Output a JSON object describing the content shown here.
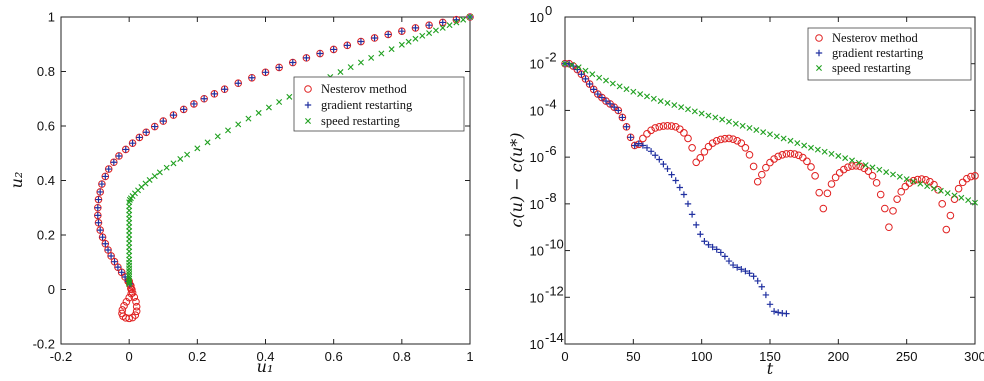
{
  "chart_data": [
    {
      "type": "scatter",
      "title": "",
      "xlabel": "u₁",
      "ylabel": "u₂",
      "xlim": [
        -0.2,
        1.0
      ],
      "ylim": [
        -0.2,
        1.0
      ],
      "xticks": [
        "-0.2",
        "0",
        "0.2",
        "0.4",
        "0.6",
        "0.8",
        "1"
      ],
      "yticks": [
        "-0.2",
        "0",
        "0.2",
        "0.4",
        "0.6",
        "0.8",
        "1"
      ],
      "grid": false,
      "legend_position": "upper-right",
      "series": [
        {
          "name": "Nesterov method",
          "marker": "circle",
          "color": "#e02020",
          "x": [
            1.0,
            0.96,
            0.92,
            0.88,
            0.84,
            0.8,
            0.76,
            0.72,
            0.68,
            0.64,
            0.6,
            0.56,
            0.52,
            0.48,
            0.44,
            0.4,
            0.36,
            0.32,
            0.28,
            0.25,
            0.22,
            0.19,
            0.16,
            0.13,
            0.1,
            0.075,
            0.05,
            0.03,
            0.01,
            -0.01,
            -0.03,
            -0.045,
            -0.06,
            -0.07,
            -0.08,
            -0.085,
            -0.09,
            -0.092,
            -0.092,
            -0.09,
            -0.085,
            -0.078,
            -0.07,
            -0.062,
            -0.053,
            -0.043,
            -0.033,
            -0.022,
            -0.012,
            -0.003,
            0.005,
            0.008,
            0.006,
            0.0,
            -0.008,
            -0.015,
            -0.02,
            -0.021,
            -0.018,
            -0.01,
            0.0,
            0.01,
            0.018,
            0.022,
            0.022,
            0.02,
            0.015,
            0.01,
            0.005,
            0.002,
            0.0
          ],
          "y": [
            1.0,
            0.99,
            0.98,
            0.97,
            0.96,
            0.948,
            0.936,
            0.923,
            0.91,
            0.896,
            0.881,
            0.866,
            0.85,
            0.833,
            0.815,
            0.797,
            0.777,
            0.757,
            0.735,
            0.718,
            0.7,
            0.681,
            0.661,
            0.64,
            0.618,
            0.598,
            0.577,
            0.558,
            0.537,
            0.514,
            0.49,
            0.467,
            0.442,
            0.415,
            0.387,
            0.358,
            0.33,
            0.3,
            0.272,
            0.245,
            0.218,
            0.192,
            0.168,
            0.145,
            0.123,
            0.102,
            0.082,
            0.063,
            0.046,
            0.03,
            0.014,
            0.0,
            -0.015,
            -0.03,
            -0.045,
            -0.06,
            -0.075,
            -0.088,
            -0.098,
            -0.104,
            -0.106,
            -0.103,
            -0.094,
            -0.08,
            -0.063,
            -0.045,
            -0.028,
            -0.012,
            0.003,
            0.018,
            0.03
          ]
        },
        {
          "name": "gradient restarting",
          "marker": "plus",
          "color": "#2030a0",
          "x": [
            1.0,
            0.96,
            0.92,
            0.88,
            0.84,
            0.8,
            0.76,
            0.72,
            0.68,
            0.64,
            0.6,
            0.56,
            0.52,
            0.48,
            0.44,
            0.4,
            0.36,
            0.32,
            0.28,
            0.25,
            0.22,
            0.19,
            0.16,
            0.13,
            0.1,
            0.075,
            0.05,
            0.03,
            0.01,
            -0.01,
            -0.03,
            -0.045,
            -0.06,
            -0.07,
            -0.08,
            -0.085,
            -0.09,
            -0.092,
            -0.092,
            -0.09,
            -0.085,
            -0.078,
            -0.07,
            -0.062,
            -0.053,
            -0.043,
            -0.033,
            -0.022,
            -0.012,
            -0.003,
            0.002
          ],
          "y": [
            1.0,
            0.99,
            0.98,
            0.97,
            0.96,
            0.948,
            0.936,
            0.923,
            0.91,
            0.896,
            0.881,
            0.866,
            0.85,
            0.833,
            0.815,
            0.797,
            0.777,
            0.757,
            0.735,
            0.718,
            0.7,
            0.681,
            0.661,
            0.64,
            0.618,
            0.598,
            0.577,
            0.558,
            0.537,
            0.514,
            0.49,
            0.467,
            0.442,
            0.415,
            0.387,
            0.358,
            0.33,
            0.3,
            0.272,
            0.245,
            0.218,
            0.192,
            0.168,
            0.145,
            0.123,
            0.102,
            0.082,
            0.063,
            0.046,
            0.03,
            0.02
          ]
        },
        {
          "name": "speed restarting",
          "marker": "x",
          "color": "#20a020",
          "x": [
            1.0,
            0.98,
            0.96,
            0.94,
            0.92,
            0.9,
            0.88,
            0.86,
            0.84,
            0.82,
            0.8,
            0.77,
            0.74,
            0.71,
            0.68,
            0.65,
            0.62,
            0.59,
            0.56,
            0.53,
            0.5,
            0.47,
            0.44,
            0.41,
            0.38,
            0.35,
            0.32,
            0.29,
            0.26,
            0.23,
            0.2,
            0.17,
            0.15,
            0.13,
            0.11,
            0.09,
            0.075,
            0.06,
            0.048,
            0.036,
            0.026,
            0.017,
            0.01,
            0.005,
            0.002,
            0.0,
            0.0,
            0.0,
            0.0,
            0.0,
            0.0,
            0.0,
            0.0,
            0.0,
            0.0,
            0.0,
            0.0,
            0.0,
            0.0,
            0.0,
            0.0,
            0.0,
            0.0,
            0.0,
            0.0,
            0.0,
            0.0,
            0.0,
            0.0,
            0.0
          ],
          "y": [
            1.0,
            0.99,
            0.98,
            0.97,
            0.96,
            0.951,
            0.941,
            0.931,
            0.92,
            0.909,
            0.898,
            0.882,
            0.866,
            0.85,
            0.833,
            0.816,
            0.798,
            0.78,
            0.762,
            0.744,
            0.726,
            0.707,
            0.688,
            0.668,
            0.648,
            0.627,
            0.606,
            0.584,
            0.562,
            0.54,
            0.518,
            0.495,
            0.479,
            0.463,
            0.447,
            0.43,
            0.416,
            0.402,
            0.389,
            0.376,
            0.364,
            0.353,
            0.343,
            0.335,
            0.329,
            0.32,
            0.305,
            0.29,
            0.275,
            0.26,
            0.245,
            0.23,
            0.215,
            0.2,
            0.185,
            0.17,
            0.155,
            0.14,
            0.125,
            0.11,
            0.098,
            0.087,
            0.076,
            0.066,
            0.056,
            0.047,
            0.039,
            0.032,
            0.026,
            0.02
          ]
        }
      ]
    },
    {
      "type": "scatter",
      "title": "",
      "xlabel": "t",
      "ylabel": "c(u) − c(u*)",
      "xlim": [
        0,
        300
      ],
      "ylim_log10": [
        -14,
        0
      ],
      "yscale": "log",
      "xticks": [
        "0",
        "50",
        "100",
        "150",
        "200",
        "250",
        "300"
      ],
      "yticks": [
        "10",
        "10",
        "10",
        "10",
        "10",
        "10",
        "10",
        "10"
      ],
      "ytick_exponents": [
        "0",
        "-2",
        "-4",
        "-6",
        "-8",
        "-10",
        "-12",
        "-14"
      ],
      "grid": false,
      "legend_position": "upper-right",
      "series": [
        {
          "name": "Nesterov method",
          "marker": "circle",
          "color": "#e02020",
          "t": [
            0,
            3,
            6,
            9,
            12,
            15,
            18,
            21,
            24,
            27,
            30,
            33,
            36,
            39,
            42,
            45,
            48,
            51,
            54,
            57,
            60,
            63,
            66,
            69,
            72,
            75,
            78,
            81,
            84,
            87,
            90,
            93,
            96,
            99,
            102,
            105,
            108,
            111,
            114,
            117,
            120,
            123,
            126,
            129,
            132,
            135,
            138,
            141,
            144,
            147,
            150,
            153,
            156,
            159,
            162,
            165,
            168,
            171,
            174,
            177,
            180,
            183,
            186,
            189,
            192,
            195,
            198,
            201,
            204,
            207,
            210,
            213,
            216,
            219,
            222,
            225,
            228,
            231,
            234,
            237,
            240,
            243,
            246,
            249,
            252,
            255,
            258,
            261,
            264,
            267,
            270,
            273,
            276,
            279,
            282,
            285,
            288,
            291,
            294,
            297,
            300
          ],
          "log10_value": [
            -2.0,
            -2.0,
            -2.1,
            -2.25,
            -2.45,
            -2.65,
            -2.87,
            -3.1,
            -3.3,
            -3.45,
            -3.6,
            -3.72,
            -3.86,
            -4.0,
            -4.3,
            -4.7,
            -5.15,
            -5.5,
            -5.45,
            -5.2,
            -5.0,
            -4.85,
            -4.75,
            -4.7,
            -4.67,
            -4.66,
            -4.67,
            -4.7,
            -4.8,
            -4.96,
            -5.2,
            -5.6,
            -6.22,
            -6.03,
            -5.77,
            -5.55,
            -5.4,
            -5.3,
            -5.24,
            -5.21,
            -5.2,
            -5.23,
            -5.3,
            -5.4,
            -5.6,
            -5.9,
            -6.4,
            -7.05,
            -6.75,
            -6.45,
            -6.23,
            -6.08,
            -5.97,
            -5.9,
            -5.86,
            -5.85,
            -5.87,
            -5.92,
            -6.02,
            -6.18,
            -6.42,
            -6.8,
            -7.52,
            -8.2,
            -7.55,
            -7.15,
            -6.87,
            -6.67,
            -6.53,
            -6.43,
            -6.38,
            -6.37,
            -6.4,
            -6.48,
            -6.6,
            -6.8,
            -7.1,
            -7.6,
            -8.2,
            -9.0,
            -8.3,
            -7.8,
            -7.48,
            -7.26,
            -7.11,
            -7.01,
            -6.96,
            -6.94,
            -6.97,
            -7.05,
            -7.18,
            -7.4,
            -8.0,
            -9.1,
            -8.5,
            -7.8,
            -7.35,
            -7.08,
            -6.92,
            -6.83,
            -6.8
          ]
        },
        {
          "name": "gradient restarting",
          "marker": "plus",
          "color": "#2030a0",
          "t": [
            0,
            3,
            6,
            9,
            12,
            15,
            18,
            21,
            24,
            27,
            30,
            33,
            36,
            39,
            42,
            45,
            48,
            51,
            54,
            57,
            60,
            63,
            66,
            69,
            72,
            75,
            78,
            81,
            84,
            87,
            90,
            93,
            96,
            99,
            102,
            105,
            108,
            111,
            114,
            117,
            120,
            123,
            126,
            129,
            132,
            135,
            138,
            141,
            144,
            147,
            150,
            153,
            156,
            159,
            162
          ],
          "log10_value": [
            -2.0,
            -2.0,
            -2.1,
            -2.25,
            -2.45,
            -2.65,
            -2.87,
            -3.1,
            -3.3,
            -3.45,
            -3.6,
            -3.72,
            -3.86,
            -4.0,
            -4.3,
            -4.7,
            -5.15,
            -5.5,
            -5.42,
            -5.5,
            -5.6,
            -5.75,
            -5.92,
            -6.1,
            -6.3,
            -6.5,
            -6.75,
            -7.0,
            -7.3,
            -7.6,
            -8.0,
            -8.45,
            -8.9,
            -9.3,
            -9.6,
            -9.75,
            -9.85,
            -9.95,
            -10.08,
            -10.25,
            -10.45,
            -10.62,
            -10.72,
            -10.8,
            -10.88,
            -10.97,
            -11.1,
            -11.3,
            -11.55,
            -11.9,
            -12.3,
            -12.6,
            -12.65,
            -12.68,
            -12.7
          ]
        },
        {
          "name": "speed restarting",
          "marker": "x",
          "color": "#20a020",
          "t": [
            0,
            5,
            10,
            15,
            20,
            25,
            30,
            35,
            40,
            45,
            50,
            55,
            60,
            65,
            70,
            75,
            80,
            85,
            90,
            95,
            100,
            105,
            110,
            115,
            120,
            125,
            130,
            135,
            140,
            145,
            150,
            155,
            160,
            165,
            170,
            175,
            180,
            185,
            190,
            195,
            200,
            205,
            210,
            215,
            220,
            225,
            230,
            235,
            240,
            245,
            250,
            255,
            260,
            265,
            270,
            275,
            280,
            285,
            290,
            295,
            300
          ],
          "log10_value": [
            -2.0,
            -2.05,
            -2.15,
            -2.3,
            -2.45,
            -2.6,
            -2.72,
            -2.85,
            -2.97,
            -3.09,
            -3.2,
            -3.3,
            -3.4,
            -3.5,
            -3.6,
            -3.68,
            -3.77,
            -3.86,
            -3.95,
            -4.04,
            -4.13,
            -4.22,
            -4.3,
            -4.39,
            -4.48,
            -4.57,
            -4.66,
            -4.75,
            -4.84,
            -4.93,
            -5.02,
            -5.11,
            -5.2,
            -5.3,
            -5.4,
            -5.5,
            -5.6,
            -5.68,
            -5.77,
            -5.86,
            -5.95,
            -6.04,
            -6.14,
            -6.24,
            -6.34,
            -6.44,
            -6.54,
            -6.64,
            -6.74,
            -6.84,
            -6.94,
            -7.04,
            -7.14,
            -7.24,
            -7.34,
            -7.44,
            -7.54,
            -7.64,
            -7.74,
            -7.84,
            -7.95
          ]
        }
      ]
    }
  ]
}
